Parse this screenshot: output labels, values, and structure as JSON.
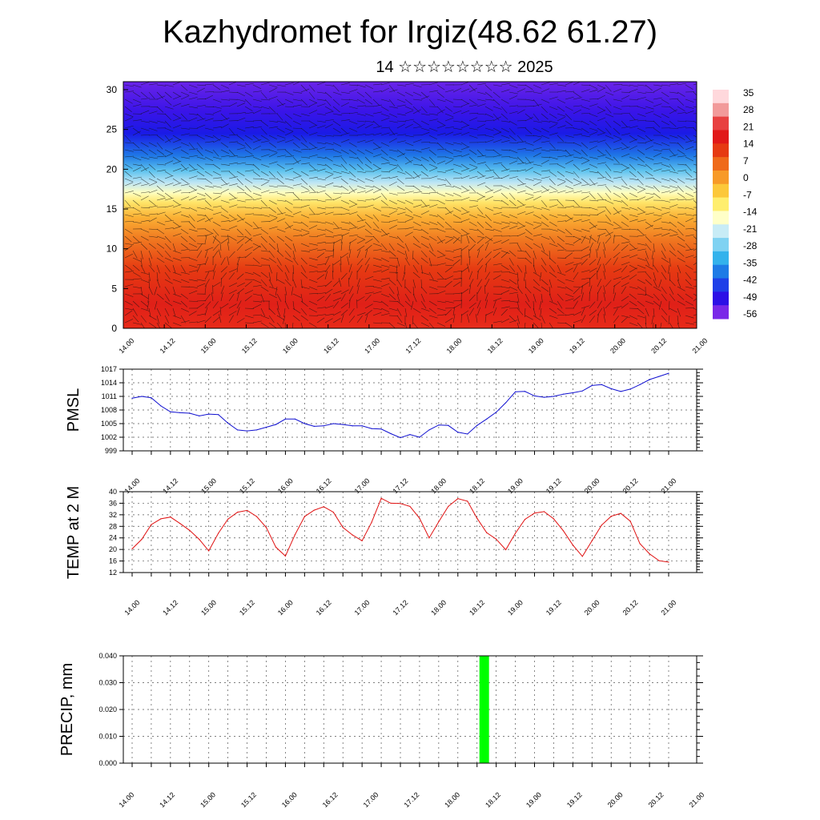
{
  "header": {
    "title": "Kazhydromet for Irgiz(48.62 61.27)",
    "subtitle": "14 ☆☆☆☆☆☆☆☆ 2025"
  },
  "colors": {
    "pmsl_line": "#1010d0",
    "temp_line": "#e01010",
    "precip_bar": "#00ff00",
    "colorbar": [
      "#ffd8dc",
      "#f29a9a",
      "#e84040",
      "#e11818",
      "#e63a12",
      "#ef6a1a",
      "#f79a28",
      "#fcc83a",
      "#ffee6e",
      "#ffffc8",
      "#c8ecf6",
      "#7fd2f2",
      "#33b2ec",
      "#1e7be6",
      "#1f40e8",
      "#2c10e6",
      "#7a28e8"
    ]
  },
  "chart_data": [
    {
      "type": "heatmap",
      "panel": "cross-section",
      "ylim": [
        0,
        30
      ],
      "yticks": [
        "0",
        "5",
        "10",
        "15",
        "20",
        "25",
        "30"
      ],
      "xticks": [
        "14.00",
        "14.12",
        "15.00",
        "15.12",
        "16.00",
        "16.12",
        "17.00",
        "17.12",
        "18.00",
        "18.12",
        "19.00",
        "19.12",
        "20.00",
        "20.12",
        "21.00"
      ],
      "colorbar_labels": [
        "35",
        "28",
        "21",
        "14",
        "7",
        "0",
        "-7",
        "-14",
        "-21",
        "-28",
        "-35",
        "-42",
        "-49",
        "-56"
      ],
      "grid": false
    },
    {
      "type": "line",
      "panel": "pmsl",
      "ylabel": "PMSL",
      "ylim": [
        999,
        1017
      ],
      "yticks": [
        "999",
        "1002",
        "1005",
        "1008",
        "1011",
        "1014",
        "1017"
      ],
      "xlim": [
        -1,
        56
      ],
      "xticks": [
        "14.00",
        "14.12",
        "15.00",
        "15.12",
        "16.00",
        "16.12",
        "17.00",
        "17.12",
        "18.00",
        "18.12",
        "19.00",
        "19.12",
        "20.00",
        "20.12",
        "21.00"
      ],
      "grid": true,
      "x": [
        0,
        1,
        2,
        3,
        4,
        5,
        6,
        7,
        8,
        9,
        10,
        11,
        12,
        13,
        14,
        15,
        16,
        17,
        18,
        19,
        20,
        21,
        22,
        23,
        24,
        25,
        26,
        27,
        28,
        29,
        30,
        31,
        32,
        33,
        34,
        35,
        36,
        37,
        38,
        39,
        40,
        41,
        42,
        43,
        44,
        45,
        46,
        47,
        48,
        49,
        50,
        51,
        52,
        53,
        54,
        55,
        56
      ],
      "values": [
        1010.6,
        1011.0,
        1010.7,
        1008.9,
        1007.6,
        1007.4,
        1007.3,
        1006.7,
        1007.1,
        1007.0,
        1005.1,
        1003.6,
        1003.4,
        1003.6,
        1004.2,
        1004.8,
        1006.0,
        1006.0,
        1005.0,
        1004.4,
        1004.5,
        1005.0,
        1004.8,
        1004.5,
        1004.5,
        1003.9,
        1003.8,
        1002.8,
        1001.9,
        1002.6,
        1002.0,
        1003.6,
        1004.7,
        1004.6,
        1003.1,
        1002.7,
        1004.6,
        1006.0,
        1007.5,
        1009.6,
        1012.0,
        1012.1,
        1011.1,
        1010.8,
        1011.0,
        1011.5,
        1011.8,
        1012.2,
        1013.4,
        1013.6,
        1012.7,
        1012.1,
        1012.6,
        1013.6,
        1014.7,
        1015.4,
        1016.1
      ]
    },
    {
      "type": "line",
      "panel": "temp",
      "ylabel": "TEMP at 2 M",
      "ylim": [
        12,
        40
      ],
      "yticks": [
        "12",
        "16",
        "20",
        "24",
        "28",
        "32",
        "36",
        "40"
      ],
      "xlim": [
        -1,
        56
      ],
      "xticks": [
        "14.00",
        "14.12",
        "15.00",
        "15.12",
        "16.00",
        "16.12",
        "17.00",
        "17.12",
        "18.00",
        "18.12",
        "19.00",
        "19.12",
        "20.00",
        "20.12",
        "21.00"
      ],
      "grid": true,
      "x": [
        0,
        1,
        2,
        3,
        4,
        5,
        6,
        7,
        8,
        9,
        10,
        11,
        12,
        13,
        14,
        15,
        16,
        17,
        18,
        19,
        20,
        21,
        22,
        23,
        24,
        25,
        26,
        27,
        28,
        29,
        30,
        31,
        32,
        33,
        34,
        35,
        36,
        37,
        38,
        39,
        40,
        41,
        42,
        43,
        44,
        45,
        46,
        47,
        48,
        49,
        50,
        51,
        52,
        53,
        54,
        55,
        56
      ],
      "values": [
        20.2,
        23.5,
        28.6,
        30.6,
        31.2,
        29.0,
        26.6,
        23.5,
        19.5,
        25.6,
        30.5,
        32.9,
        33.5,
        31.4,
        27.6,
        20.8,
        17.7,
        25.1,
        31.4,
        33.6,
        34.8,
        32.9,
        27.6,
        25.0,
        23.0,
        29.4,
        37.7,
        36.0,
        35.9,
        34.9,
        30.8,
        24.0,
        29.6,
        34.9,
        37.6,
        36.7,
        30.8,
        25.8,
        23.6,
        19.9,
        25.6,
        30.4,
        32.6,
        33.1,
        30.6,
        26.5,
        21.5,
        17.6,
        23.0,
        28.4,
        31.5,
        32.5,
        29.8,
        22.0,
        18.5,
        16.1,
        15.6
      ]
    },
    {
      "type": "bar",
      "panel": "precip",
      "ylabel": "PRECIP, mm",
      "ylim": [
        0,
        0.04
      ],
      "yticks": [
        "0.000",
        "0.010",
        "0.020",
        "0.030",
        "0.040"
      ],
      "xlim": [
        0,
        56
      ],
      "xticks": [
        "14.00",
        "14.12",
        "15.00",
        "15.12",
        "16.00",
        "16.12",
        "17.00",
        "17.12",
        "18.00",
        "18.12",
        "19.00",
        "19.12",
        "20.00",
        "20.12",
        "21.00"
      ],
      "grid": true,
      "x": [
        36.75
      ],
      "values": [
        0.04
      ],
      "bar_width": 1
    }
  ]
}
